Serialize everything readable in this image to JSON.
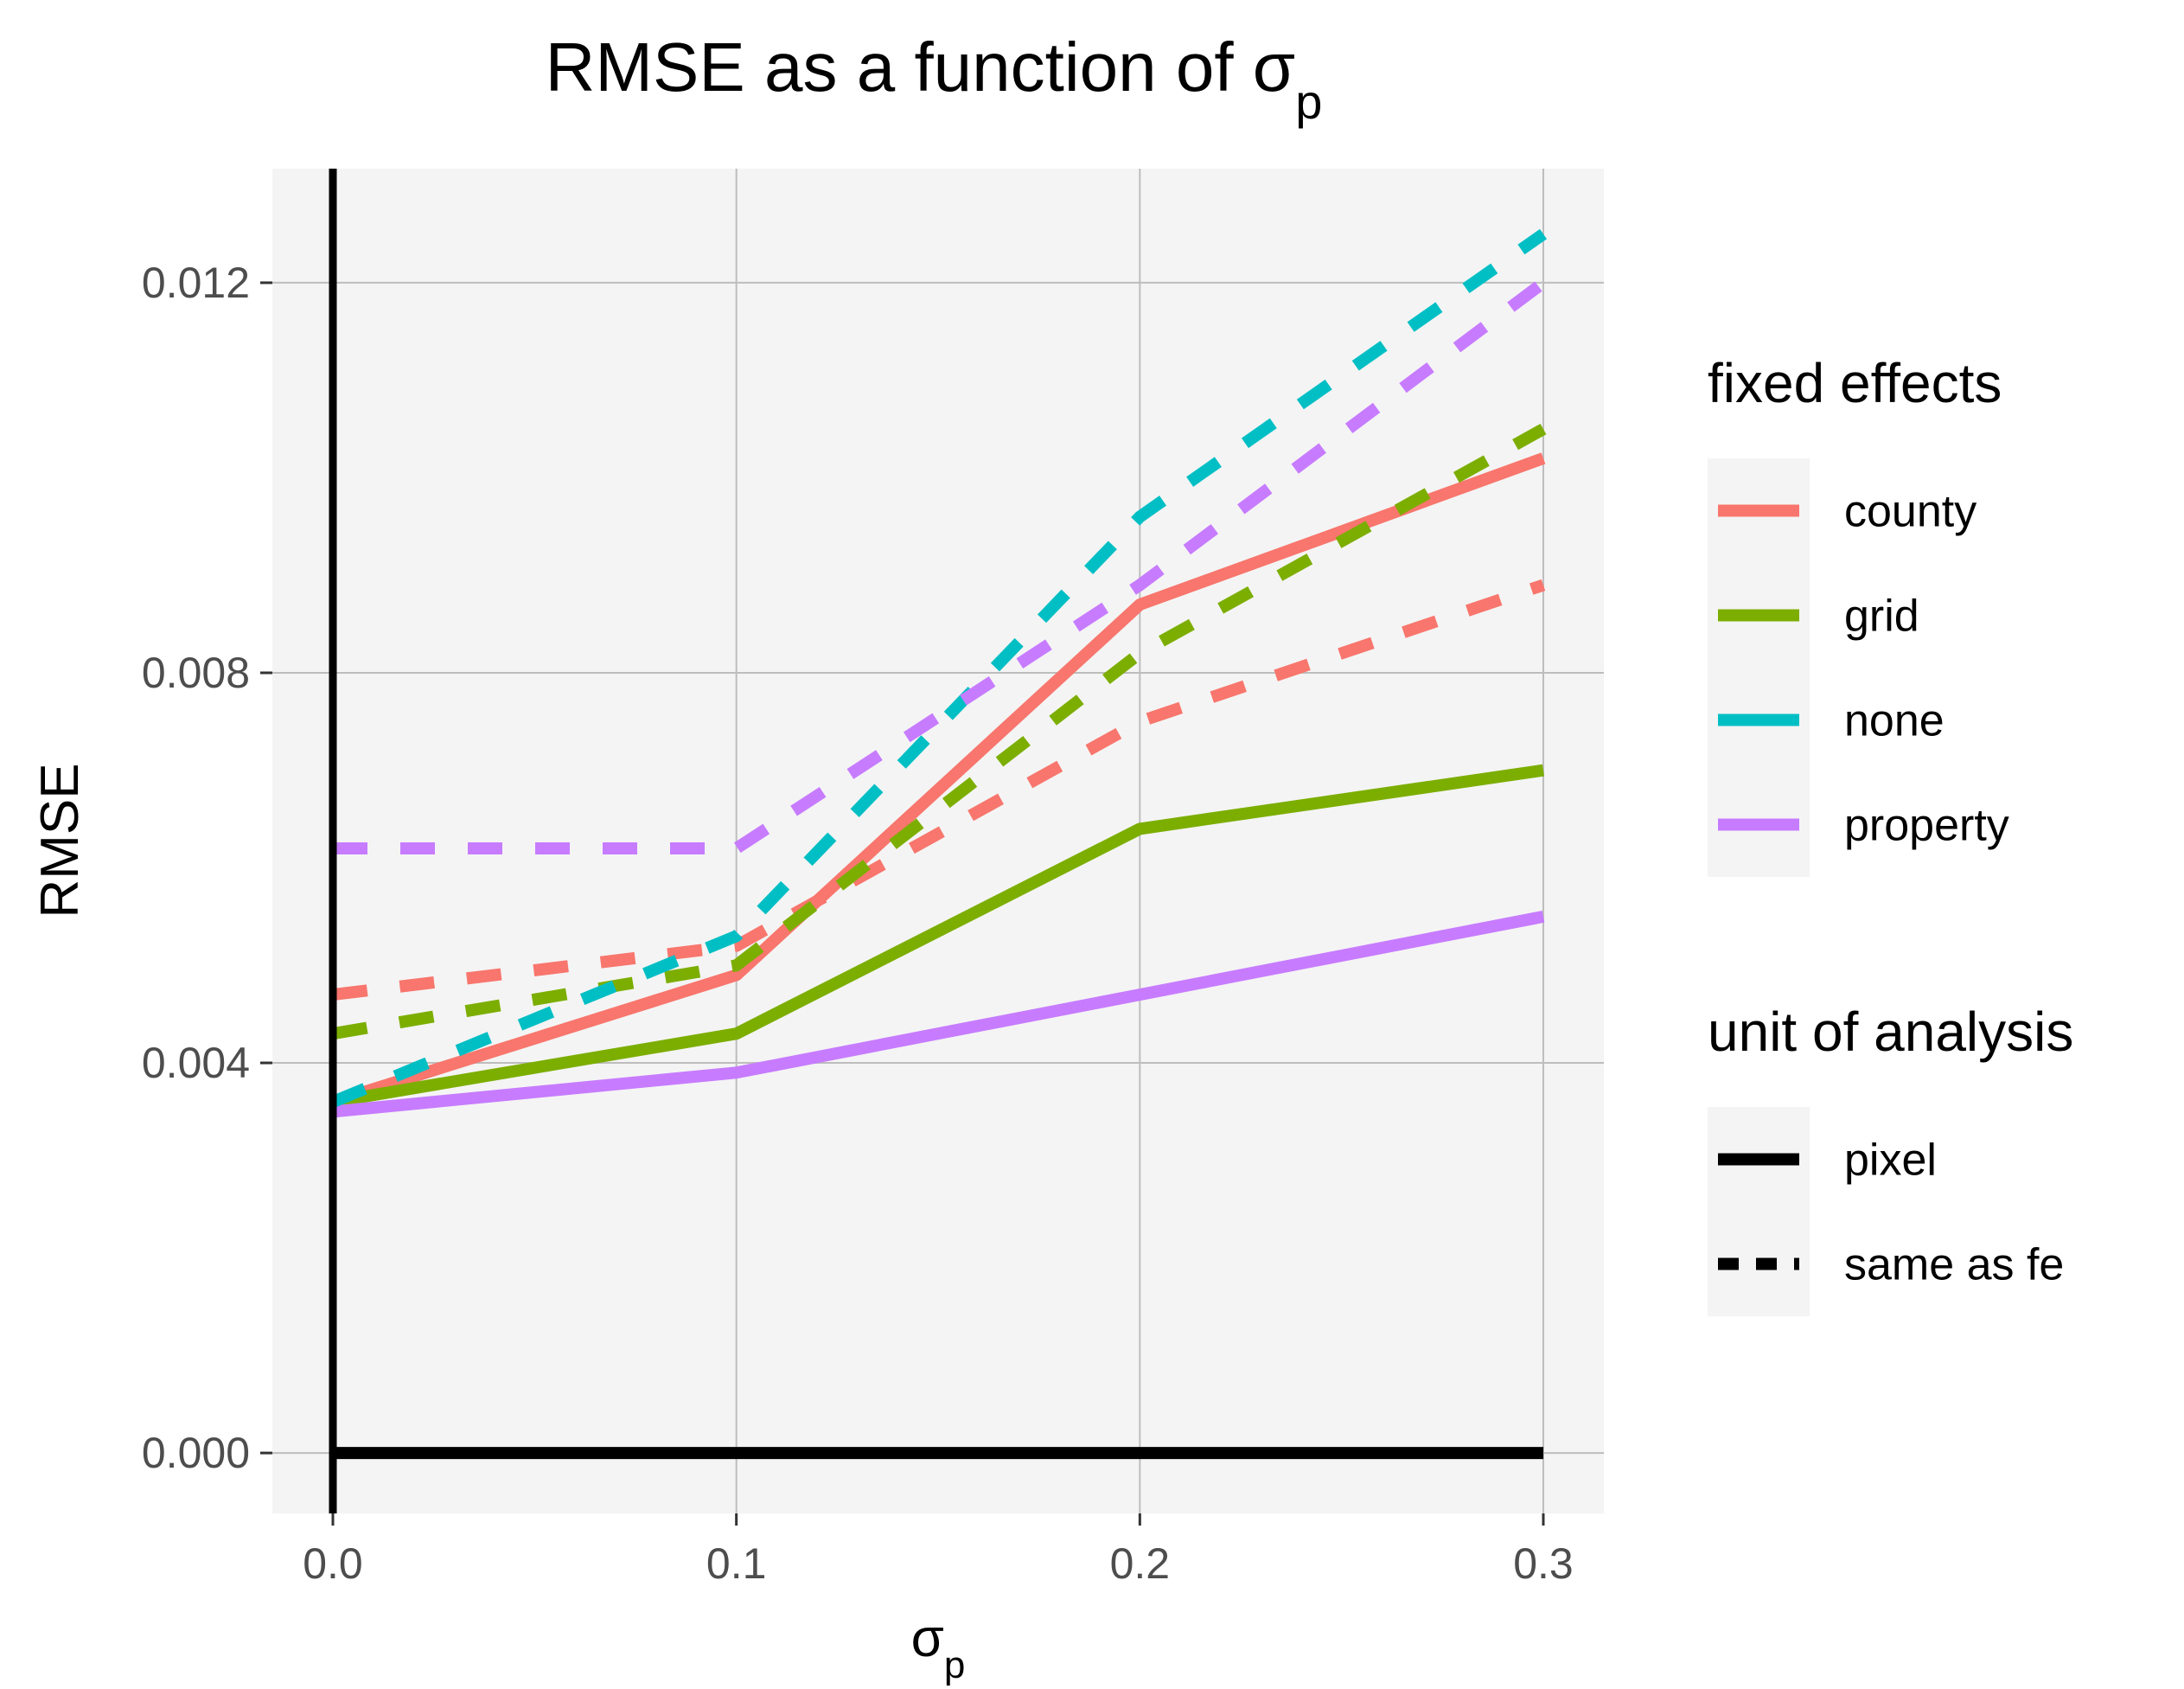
{
  "chart_data": {
    "type": "line",
    "title": "RMSE as a function of σ",
    "title_subscript": "p",
    "xlabel": "σ",
    "xlabel_subscript": "p",
    "ylabel": "RMSE",
    "x": [
      0.0,
      0.1,
      0.2,
      0.3
    ],
    "x_tick_labels": [
      "0.0",
      "0.1",
      "0.2",
      "0.3"
    ],
    "y_tick_values": [
      0.0,
      0.004,
      0.008,
      0.012
    ],
    "y_tick_labels": [
      "0.000",
      "0.004",
      "0.008",
      "0.012"
    ],
    "xlim": [
      -0.015,
      0.315
    ],
    "ylim": [
      -0.00062,
      0.01317
    ],
    "grid": true,
    "legend_position": "right",
    "legends": [
      {
        "title": "fixed effects",
        "entries": [
          {
            "label": "county",
            "color": "#F8766D"
          },
          {
            "label": "grid",
            "color": "#7CAE00"
          },
          {
            "label": "none",
            "color": "#00BFC4"
          },
          {
            "label": "property",
            "color": "#C77CFF"
          }
        ]
      },
      {
        "title": "unit of analysis",
        "entries": [
          {
            "label": "pixel",
            "linetype": "solid"
          },
          {
            "label": "same as fe",
            "linetype": "dashed"
          }
        ]
      }
    ],
    "series": [
      {
        "fixed_effects": "county",
        "unit": "pixel",
        "color": "#F8766D",
        "values": [
          0.0036,
          0.0049,
          0.0087,
          0.0102
        ]
      },
      {
        "fixed_effects": "grid",
        "unit": "pixel",
        "color": "#7CAE00",
        "values": [
          0.0036,
          0.0043,
          0.0064,
          0.007
        ]
      },
      {
        "fixed_effects": "property",
        "unit": "pixel",
        "color": "#C77CFF",
        "values": [
          0.0035,
          0.0039,
          0.0047,
          0.0055
        ]
      },
      {
        "fixed_effects": "county",
        "unit": "same as fe",
        "color": "#F8766D",
        "values": [
          0.0047,
          0.0052,
          0.0075,
          0.0089
        ]
      },
      {
        "fixed_effects": "grid",
        "unit": "same as fe",
        "color": "#7CAE00",
        "values": [
          0.0043,
          0.005,
          0.0082,
          0.0105
        ]
      },
      {
        "fixed_effects": "none",
        "unit": "same as fe",
        "color": "#00BFC4",
        "values": [
          0.0036,
          0.0053,
          0.0096,
          0.0125
        ]
      },
      {
        "fixed_effects": "property",
        "unit": "same as fe",
        "color": "#C77CFF",
        "values": [
          0.0062,
          0.0062,
          0.0089,
          0.012
        ]
      },
      {
        "fixed_effects": "none",
        "unit": "pixel",
        "color": "#000000",
        "values": [
          0.0,
          0.0,
          0.0,
          0.0
        ]
      }
    ],
    "reference_lines": [
      {
        "orientation": "vertical",
        "x": 0.0,
        "linetype": "solid",
        "color": "#000000"
      }
    ]
  }
}
